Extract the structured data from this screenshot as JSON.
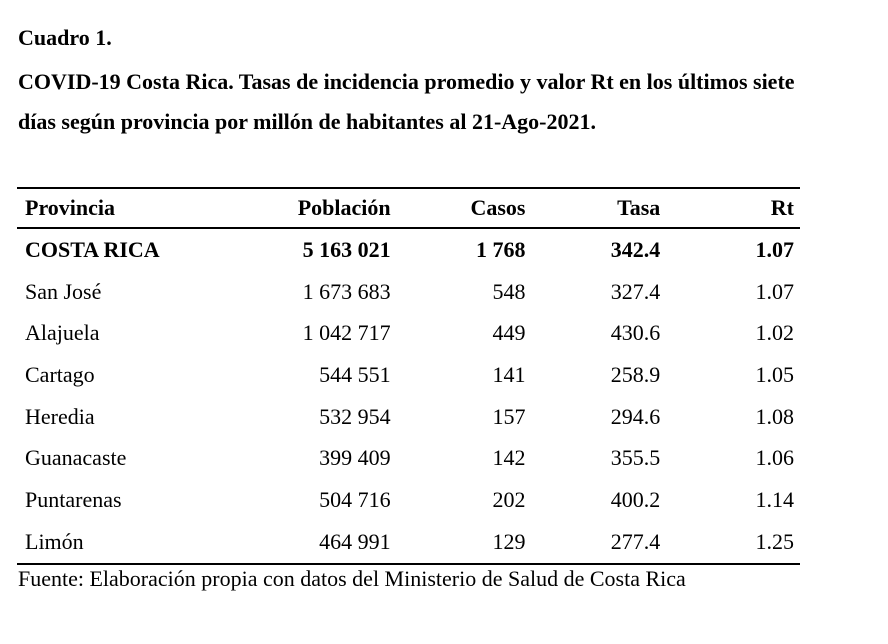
{
  "caption": {
    "number": "Cuadro 1.",
    "title_line1": "COVID-19 Costa Rica. Tasas de incidencia promedio y valor Rt en los últimos siete",
    "title_line2": "días según provincia por millón de habitantes al 21-Ago-2021."
  },
  "table": {
    "headers": [
      "Provincia",
      "Población",
      "Casos",
      "Tasa",
      "Rt"
    ],
    "rows": [
      [
        "COSTA RICA",
        "5 163 021",
        "1 768",
        "342.4",
        "1.07"
      ],
      [
        "San José",
        "1 673 683",
        "548",
        "327.4",
        "1.07"
      ],
      [
        "Alajuela",
        "1 042 717",
        "449",
        "430.6",
        "1.02"
      ],
      [
        "Cartago",
        "544 551",
        "141",
        "258.9",
        "1.05"
      ],
      [
        "Heredia",
        "532 954",
        "157",
        "294.6",
        "1.08"
      ],
      [
        "Guanacaste",
        "399 409",
        "142",
        "355.5",
        "1.06"
      ],
      [
        "Puntarenas",
        "504 716",
        "202",
        "400.2",
        "1.14"
      ],
      [
        "Limón",
        "464 991",
        "129",
        "277.4",
        "1.25"
      ]
    ]
  },
  "source": "Fuente: Elaboración propia con datos del Ministerio de Salud de Costa Rica"
}
